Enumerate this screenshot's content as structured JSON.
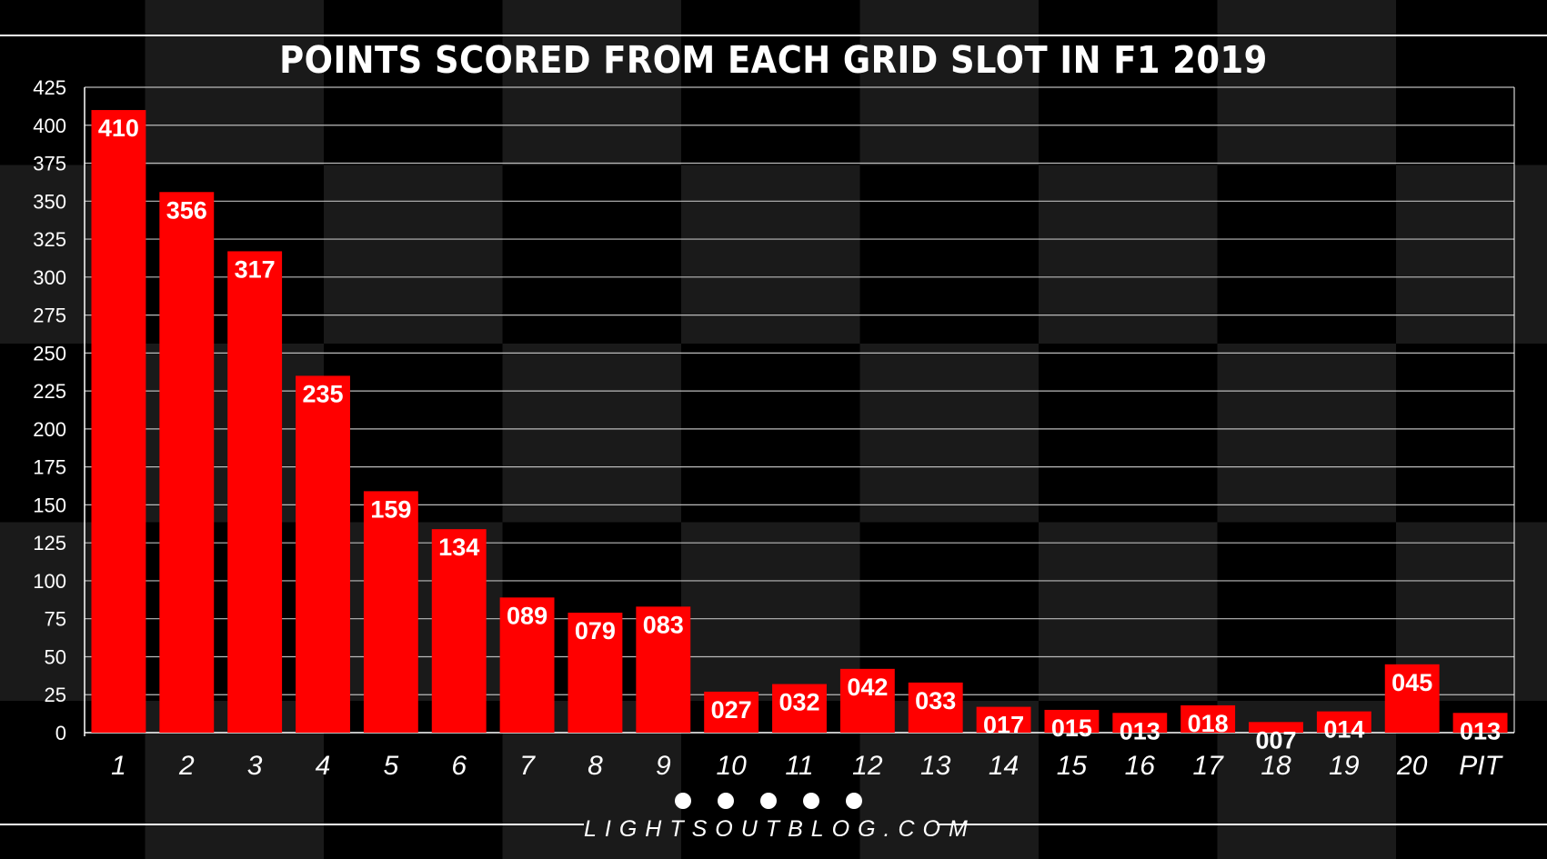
{
  "chart_data": {
    "type": "bar",
    "title": "POINTS SCORED FROM EACH GRID SLOT IN F1 2019",
    "categories": [
      "1",
      "2",
      "3",
      "4",
      "5",
      "6",
      "7",
      "8",
      "9",
      "10",
      "11",
      "12",
      "13",
      "14",
      "15",
      "16",
      "17",
      "18",
      "19",
      "20",
      "PIT"
    ],
    "values": [
      410,
      356,
      317,
      235,
      159,
      134,
      89,
      79,
      83,
      27,
      32,
      42,
      33,
      17,
      15,
      13,
      18,
      7,
      14,
      45,
      13
    ],
    "value_labels": [
      "410",
      "356",
      "317",
      "235",
      "159",
      "134",
      "089",
      "079",
      "083",
      "027",
      "032",
      "042",
      "033",
      "017",
      "015",
      "013",
      "018",
      "007",
      "014",
      "045",
      "013"
    ],
    "ylim": [
      0,
      425
    ],
    "yticks": [
      0,
      25,
      50,
      75,
      100,
      125,
      150,
      175,
      200,
      225,
      250,
      275,
      300,
      325,
      350,
      375,
      400,
      425
    ],
    "xlabel": "",
    "ylabel": "",
    "grid": true,
    "bar_color": "#ff0000",
    "label_color": "#ffffff"
  },
  "footer": {
    "site": "LIGHTSOUTBLOG.COM"
  },
  "colors": {
    "background": "#000000",
    "checker": "#1a1a1a",
    "grid": "#bbbbbb",
    "text": "#ffffff"
  }
}
